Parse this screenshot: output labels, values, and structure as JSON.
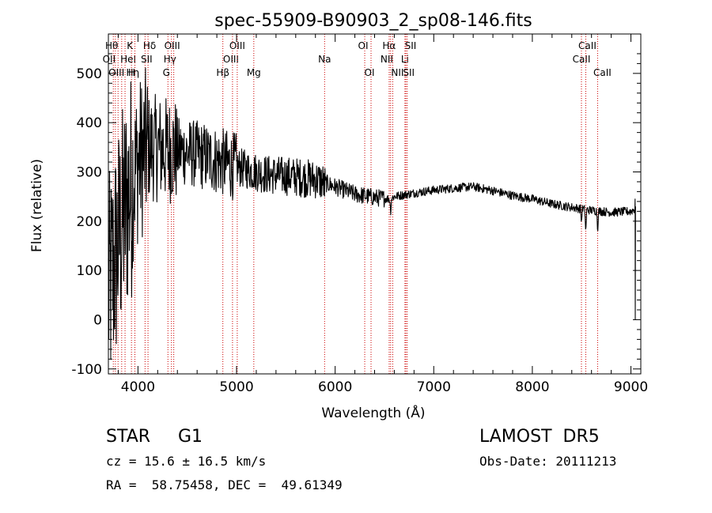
{
  "chart_data": {
    "type": "line",
    "title": "spec-55909-B90903_2_sp08-146.fits",
    "xlabel": "Wavelength (Å)",
    "ylabel": "Flux (relative)",
    "xlim": [
      3700,
      9100
    ],
    "ylim": [
      -110,
      580
    ],
    "xticks": [
      4000,
      5000,
      6000,
      7000,
      8000,
      9000
    ],
    "yticks": [
      -100,
      0,
      100,
      200,
      300,
      400,
      500
    ],
    "grid": false,
    "series": [
      {
        "continuum": {
          "x": [
            3700,
            3800,
            3900,
            4000,
            4100,
            4300,
            4500,
            4700,
            5000,
            5300,
            5600,
            5800,
            6000,
            6200,
            6400,
            6560,
            6600,
            6800,
            7000,
            7200,
            7400,
            7600,
            7800,
            8000,
            8200,
            8400,
            8600,
            8800,
            9000,
            9040
          ],
          "y": [
            50,
            160,
            250,
            320,
            350,
            345,
            340,
            330,
            310,
            295,
            290,
            285,
            270,
            255,
            248,
            245,
            250,
            257,
            263,
            267,
            270,
            262,
            252,
            245,
            235,
            228,
            222,
            218,
            220,
            225
          ]
        },
        "features": [
          {
            "x": 8498,
            "depth": 28,
            "width": 5
          },
          {
            "x": 8542,
            "depth": 45,
            "width": 6
          },
          {
            "x": 8662,
            "depth": 35,
            "width": 6
          },
          {
            "x": 6563,
            "depth": 25,
            "width": 6
          },
          {
            "x": 5890,
            "depth": 12,
            "width": 5
          }
        ]
      }
    ],
    "lines": [
      {
        "x": 3750,
        "label": "Hθ",
        "row": 0,
        "dx": -2
      },
      {
        "x": 3771,
        "label": "OII",
        "row": 1,
        "dx": -8
      },
      {
        "x": 3798,
        "label": "OIII",
        "row": 2,
        "dx": -2
      },
      {
        "x": 3835,
        "label": "Hη",
        "row": 2,
        "dx": 14
      },
      {
        "x": 3869,
        "label": "HeI",
        "row": 1,
        "dx": 4
      },
      {
        "x": 3934,
        "label": "K",
        "row": 0,
        "dx": -2
      },
      {
        "x": 3969,
        "label": "H",
        "row": 2,
        "dx": -4
      },
      {
        "x": 4102,
        "label": "Hδ",
        "row": 0,
        "dx": 2
      },
      {
        "x": 4072,
        "label": "SII",
        "row": 1,
        "dx": 2
      },
      {
        "x": 4304,
        "label": "G",
        "row": 2,
        "dx": -2
      },
      {
        "x": 4340,
        "label": "Hγ",
        "row": 1,
        "dx": -2
      },
      {
        "x": 4363,
        "label": "OIII",
        "row": 0,
        "dx": -2
      },
      {
        "x": 4861,
        "label": "Hβ",
        "row": 2,
        "dx": 0
      },
      {
        "x": 4959,
        "label": "OIII",
        "row": 1,
        "dx": -2
      },
      {
        "x": 5007,
        "label": "OIII",
        "row": 0,
        "dx": 0
      },
      {
        "x": 5175,
        "label": "Mg",
        "row": 2,
        "dx": 0
      },
      {
        "x": 5893,
        "label": "Na",
        "row": 1,
        "dx": 0
      },
      {
        "x": 6300,
        "label": "OI",
        "row": 0,
        "dx": -2
      },
      {
        "x": 6364,
        "label": "OI",
        "row": 2,
        "dx": -2
      },
      {
        "x": 6548,
        "label": "NII",
        "row": 1,
        "dx": -3
      },
      {
        "x": 6563,
        "label": "Hα",
        "row": 0,
        "dx": -2
      },
      {
        "x": 6584,
        "label": "NII",
        "row": 2,
        "dx": 6
      },
      {
        "x": 6708,
        "label": "Li",
        "row": 1,
        "dx": 0
      },
      {
        "x": 6717,
        "label": "SII",
        "row": 0,
        "dx": 6
      },
      {
        "x": 6731,
        "label": "SII",
        "row": 2,
        "dx": 2
      },
      {
        "x": 8498,
        "label": "CaII",
        "row": 1,
        "dx": 0
      },
      {
        "x": 8542,
        "label": "CaII",
        "row": 0,
        "dx": 2
      },
      {
        "x": 8662,
        "label": "CaII",
        "row": 2,
        "dx": 6
      }
    ],
    "line_color": "#cc0000"
  },
  "info": {
    "object_class": "STAR     G1",
    "survey": "LAMOST  DR5",
    "cz": "cz = 15.6 ± 16.5 km/s",
    "obs_date": "Obs-Date: 20111213",
    "coords": "RA =  58.75458, DEC =  49.61349"
  }
}
